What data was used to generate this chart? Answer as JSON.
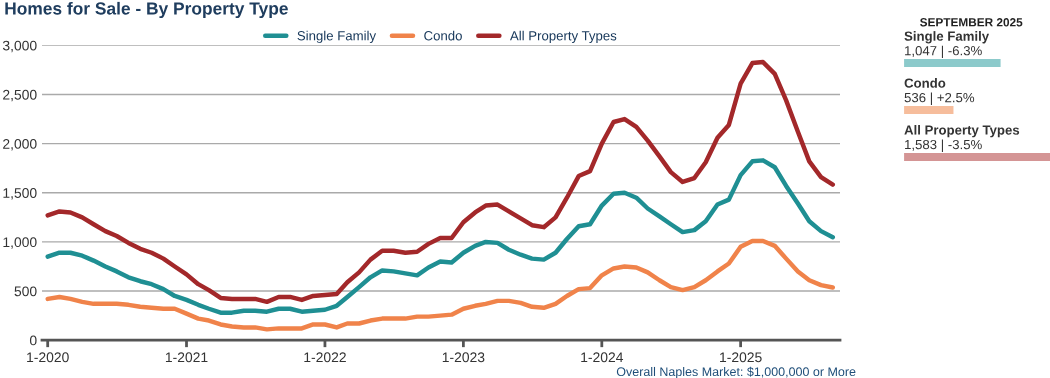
{
  "chart_data": [
    {
      "type": "line",
      "title": "Homes for Sale - By Property Type",
      "legend": "top",
      "grid": "y",
      "marker": "none",
      "line_style": "solid",
      "x": [
        "2020-01",
        "2020-02",
        "2020-03",
        "2020-04",
        "2020-05",
        "2020-06",
        "2020-07",
        "2020-08",
        "2020-09",
        "2020-10",
        "2020-11",
        "2020-12",
        "2021-01",
        "2021-02",
        "2021-03",
        "2021-04",
        "2021-05",
        "2021-06",
        "2021-07",
        "2021-08",
        "2021-09",
        "2021-10",
        "2021-11",
        "2021-12",
        "2022-01",
        "2022-02",
        "2022-03",
        "2022-04",
        "2022-05",
        "2022-06",
        "2022-07",
        "2022-08",
        "2022-09",
        "2022-10",
        "2022-11",
        "2022-12",
        "2023-01",
        "2023-02",
        "2023-03",
        "2023-04",
        "2023-05",
        "2023-06",
        "2023-07",
        "2023-08",
        "2023-09",
        "2023-10",
        "2023-11",
        "2023-12",
        "2024-01",
        "2024-02",
        "2024-03",
        "2024-04",
        "2024-05",
        "2024-06",
        "2024-07",
        "2024-08",
        "2024-09",
        "2024-10",
        "2024-11",
        "2024-12",
        "2025-01",
        "2025-02",
        "2025-03",
        "2025-04",
        "2025-05",
        "2025-06",
        "2025-07",
        "2025-08",
        "2025-09"
      ],
      "series": [
        {
          "name": "Single Family",
          "color": "#1f8f93",
          "values": [
            850,
            890,
            890,
            860,
            810,
            750,
            700,
            640,
            600,
            570,
            520,
            450,
            410,
            360,
            320,
            280,
            280,
            300,
            300,
            290,
            320,
            320,
            290,
            300,
            310,
            350,
            440,
            540,
            640,
            710,
            700,
            680,
            660,
            740,
            800,
            790,
            890,
            960,
            1000,
            990,
            920,
            870,
            830,
            820,
            890,
            1030,
            1160,
            1180,
            1370,
            1490,
            1500,
            1450,
            1340,
            1260,
            1180,
            1100,
            1120,
            1210,
            1380,
            1430,
            1680,
            1820,
            1830,
            1760,
            1570,
            1390,
            1210,
            1110,
            1047
          ]
        },
        {
          "name": "Condo",
          "color": "#f0834a",
          "values": [
            420,
            440,
            420,
            390,
            370,
            370,
            370,
            360,
            340,
            330,
            320,
            320,
            270,
            220,
            200,
            160,
            140,
            130,
            130,
            110,
            120,
            120,
            120,
            160,
            160,
            130,
            170,
            170,
            200,
            220,
            220,
            220,
            240,
            240,
            250,
            260,
            320,
            350,
            370,
            400,
            400,
            380,
            340,
            330,
            370,
            450,
            520,
            530,
            660,
            730,
            750,
            740,
            690,
            610,
            540,
            510,
            540,
            610,
            700,
            780,
            950,
            1010,
            1010,
            960,
            830,
            700,
            610,
            560,
            536
          ]
        },
        {
          "name": "All Property Types",
          "color": "#a3282a",
          "values": [
            1270,
            1310,
            1300,
            1250,
            1180,
            1110,
            1060,
            990,
            930,
            890,
            830,
            750,
            670,
            570,
            510,
            430,
            420,
            420,
            420,
            390,
            440,
            440,
            410,
            450,
            460,
            470,
            590,
            690,
            820,
            910,
            910,
            890,
            900,
            980,
            1040,
            1040,
            1200,
            1300,
            1370,
            1380,
            1310,
            1240,
            1170,
            1150,
            1250,
            1450,
            1670,
            1720,
            2000,
            2220,
            2250,
            2170,
            2030,
            1870,
            1710,
            1610,
            1650,
            1810,
            2060,
            2190,
            2610,
            2820,
            2830,
            2710,
            2440,
            2120,
            1820,
            1660,
            1583
          ]
        }
      ],
      "xlim": [
        "2019-12-17",
        "2025-09-20"
      ],
      "xticks": [
        {
          "value": "2020-01",
          "label": "1-2020"
        },
        {
          "value": "2021-01",
          "label": "1-2021"
        },
        {
          "value": "2022-01",
          "label": "1-2022"
        },
        {
          "value": "2023-01",
          "label": "1-2023"
        },
        {
          "value": "2024-01",
          "label": "1-2024"
        },
        {
          "value": "2025-01",
          "label": "1-2025"
        }
      ],
      "ylim": [
        0,
        3000
      ],
      "yticks": [
        {
          "value": 0,
          "label": "0"
        },
        {
          "value": 500,
          "label": "500"
        },
        {
          "value": 1000,
          "label": "1,000"
        },
        {
          "value": 1500,
          "label": "1,500"
        },
        {
          "value": 2000,
          "label": "2,000"
        },
        {
          "value": 2500,
          "label": "2,500"
        },
        {
          "value": 3000,
          "label": "3,000"
        }
      ],
      "annotations": [
        "Overall Naples Market: $1,000,000 or More"
      ]
    },
    {
      "type": "bar",
      "orientation": "horizontal",
      "title": "SEPTEMBER 2025",
      "categories": [
        "Single Family",
        "Condo",
        "All Property Types"
      ],
      "values": [
        1047,
        536,
        1583
      ],
      "colors": [
        "#8ccacb",
        "#f6bd9c",
        "#d49595"
      ],
      "value_labels": [
        "1,047 | -6.3%",
        "536 | +2.5%",
        "1,583 | -3.5%"
      ]
    }
  ]
}
